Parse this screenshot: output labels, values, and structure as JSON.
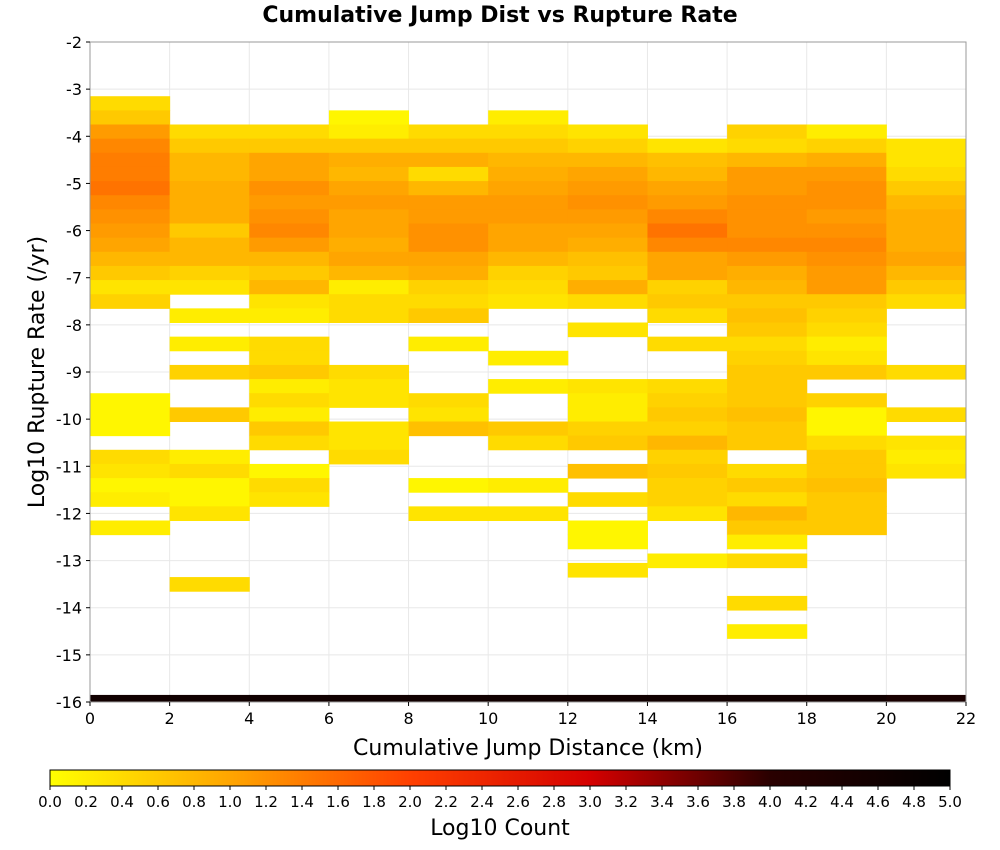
{
  "chart_data": {
    "type": "heatmap",
    "title": "Cumulative Jump Dist vs Rupture Rate",
    "xlabel": "Cumulative Jump Distance (km)",
    "ylabel": "Log10 Rupture Rate (/yr)",
    "colorbar_label": "Log10 Count",
    "xlim": [
      0,
      22
    ],
    "ylim": [
      -16,
      -2
    ],
    "x_ticks": [
      "0",
      "2",
      "4",
      "6",
      "8",
      "10",
      "12",
      "14",
      "16",
      "18",
      "20",
      "22"
    ],
    "y_ticks": [
      "-2",
      "-3",
      "-4",
      "-5",
      "-6",
      "-7",
      "-8",
      "-9",
      "-10",
      "-11",
      "-12",
      "-13",
      "-14",
      "-15",
      "-16"
    ],
    "colorbar_ticks": [
      "0.0",
      "0.2",
      "0.4",
      "0.6",
      "0.8",
      "1.0",
      "1.2",
      "1.4",
      "1.6",
      "1.8",
      "2.0",
      "2.2",
      "2.4",
      "2.6",
      "2.8",
      "3.0",
      "3.2",
      "3.4",
      "3.6",
      "3.8",
      "4.0",
      "4.2",
      "4.4",
      "4.6",
      "4.8",
      "5.0"
    ],
    "color_range": [
      0,
      5
    ],
    "colormap": [
      "#ffff00",
      "#ffa500",
      "#ff4000",
      "#d40000",
      "#2a0000",
      "#000000"
    ],
    "grid": true,
    "legend": "bottom",
    "x_bin_width": 2,
    "y_bin_height": 0.3,
    "columns": [
      {
        "x0": 0,
        "cells": [
          [
            -3.3,
            0.4
          ],
          [
            -3.6,
            0.6
          ],
          [
            -3.9,
            1.1
          ],
          [
            -4.2,
            1.3
          ],
          [
            -4.5,
            1.4
          ],
          [
            -4.8,
            1.4
          ],
          [
            -5.1,
            1.5
          ],
          [
            -5.4,
            1.3
          ],
          [
            -5.7,
            1.2
          ],
          [
            -6.0,
            1.1
          ],
          [
            -6.3,
            1.0
          ],
          [
            -6.6,
            0.8
          ],
          [
            -6.9,
            0.6
          ],
          [
            -7.2,
            0.3
          ],
          [
            -7.5,
            0.5
          ],
          [
            -9.6,
            0.1
          ],
          [
            -9.9,
            0.1
          ],
          [
            -10.2,
            0.1
          ],
          [
            -10.8,
            0.4
          ],
          [
            -11.1,
            0.3
          ],
          [
            -11.4,
            0.1
          ],
          [
            -11.7,
            0.2
          ],
          [
            -12.3,
            0.2
          ]
        ]
      },
      {
        "x0": 2,
        "cells": [
          [
            -3.9,
            0.4
          ],
          [
            -4.2,
            0.6
          ],
          [
            -4.5,
            0.8
          ],
          [
            -4.8,
            0.8
          ],
          [
            -5.1,
            0.9
          ],
          [
            -5.4,
            0.9
          ],
          [
            -5.7,
            0.9
          ],
          [
            -6.0,
            0.6
          ],
          [
            -6.3,
            0.8
          ],
          [
            -6.6,
            0.8
          ],
          [
            -6.9,
            0.5
          ],
          [
            -7.2,
            0.3
          ],
          [
            -7.8,
            0.2
          ],
          [
            -8.4,
            0.2
          ],
          [
            -9.0,
            0.5
          ],
          [
            -9.9,
            0.6
          ],
          [
            -10.8,
            0.2
          ],
          [
            -11.1,
            0.4
          ],
          [
            -11.4,
            0.1
          ],
          [
            -11.7,
            0.1
          ],
          [
            -12.0,
            0.3
          ],
          [
            -13.5,
            0.4
          ]
        ]
      },
      {
        "x0": 4,
        "cells": [
          [
            -3.9,
            0.4
          ],
          [
            -4.2,
            0.6
          ],
          [
            -4.5,
            1.0
          ],
          [
            -4.8,
            1.0
          ],
          [
            -5.1,
            1.2
          ],
          [
            -5.4,
            1.1
          ],
          [
            -5.7,
            1.2
          ],
          [
            -6.0,
            1.3
          ],
          [
            -6.3,
            1.1
          ],
          [
            -6.6,
            0.8
          ],
          [
            -6.9,
            0.6
          ],
          [
            -7.2,
            0.8
          ],
          [
            -7.5,
            0.3
          ],
          [
            -7.8,
            0.2
          ],
          [
            -8.4,
            0.4
          ],
          [
            -8.7,
            0.4
          ],
          [
            -9.0,
            0.6
          ],
          [
            -9.3,
            0.2
          ],
          [
            -9.6,
            0.4
          ],
          [
            -9.9,
            0.2
          ],
          [
            -10.2,
            0.6
          ],
          [
            -10.5,
            0.4
          ],
          [
            -11.1,
            0.1
          ],
          [
            -11.4,
            0.4
          ],
          [
            -11.7,
            0.3
          ]
        ]
      },
      {
        "x0": 6,
        "cells": [
          [
            -3.6,
            0.1
          ],
          [
            -3.9,
            0.2
          ],
          [
            -4.2,
            0.6
          ],
          [
            -4.5,
            0.9
          ],
          [
            -4.8,
            0.8
          ],
          [
            -5.1,
            1.0
          ],
          [
            -5.4,
            1.1
          ],
          [
            -5.7,
            1.0
          ],
          [
            -6.0,
            1.0
          ],
          [
            -6.3,
            0.9
          ],
          [
            -6.6,
            1.0
          ],
          [
            -6.9,
            0.8
          ],
          [
            -7.2,
            0.2
          ],
          [
            -7.5,
            0.4
          ],
          [
            -7.8,
            0.4
          ],
          [
            -9.0,
            0.4
          ],
          [
            -9.3,
            0.3
          ],
          [
            -9.6,
            0.3
          ],
          [
            -10.2,
            0.3
          ],
          [
            -10.5,
            0.3
          ],
          [
            -10.8,
            0.4
          ]
        ]
      },
      {
        "x0": 8,
        "cells": [
          [
            -3.9,
            0.4
          ],
          [
            -4.2,
            0.6
          ],
          [
            -4.5,
            0.9
          ],
          [
            -4.8,
            0.4
          ],
          [
            -5.1,
            0.8
          ],
          [
            -5.4,
            1.1
          ],
          [
            -5.7,
            1.1
          ],
          [
            -6.0,
            1.2
          ],
          [
            -6.3,
            1.2
          ],
          [
            -6.6,
            1.0
          ],
          [
            -6.9,
            0.9
          ],
          [
            -7.2,
            0.5
          ],
          [
            -7.5,
            0.4
          ],
          [
            -7.8,
            0.6
          ],
          [
            -8.4,
            0.2
          ],
          [
            -9.6,
            0.4
          ],
          [
            -9.9,
            0.3
          ],
          [
            -10.2,
            0.7
          ],
          [
            -11.4,
            0.1
          ],
          [
            -12.0,
            0.3
          ]
        ]
      },
      {
        "x0": 10,
        "cells": [
          [
            -3.6,
            0.2
          ],
          [
            -3.9,
            0.4
          ],
          [
            -4.2,
            0.6
          ],
          [
            -4.5,
            0.8
          ],
          [
            -4.8,
            0.9
          ],
          [
            -5.1,
            1.0
          ],
          [
            -5.4,
            1.1
          ],
          [
            -5.7,
            1.1
          ],
          [
            -6.0,
            1.0
          ],
          [
            -6.3,
            1.0
          ],
          [
            -6.6,
            0.8
          ],
          [
            -6.9,
            0.5
          ],
          [
            -7.2,
            0.4
          ],
          [
            -7.5,
            0.3
          ],
          [
            -8.7,
            0.2
          ],
          [
            -9.3,
            0.2
          ],
          [
            -10.2,
            0.6
          ],
          [
            -10.5,
            0.4
          ],
          [
            -11.4,
            0.2
          ],
          [
            -12.0,
            0.3
          ]
        ]
      },
      {
        "x0": 12,
        "cells": [
          [
            -3.9,
            0.3
          ],
          [
            -4.2,
            0.5
          ],
          [
            -4.5,
            0.8
          ],
          [
            -4.8,
            1.0
          ],
          [
            -5.1,
            1.1
          ],
          [
            -5.4,
            1.2
          ],
          [
            -5.7,
            1.1
          ],
          [
            -6.0,
            1.0
          ],
          [
            -6.3,
            0.9
          ],
          [
            -6.6,
            0.7
          ],
          [
            -6.9,
            0.6
          ],
          [
            -7.2,
            0.9
          ],
          [
            -7.5,
            0.4
          ],
          [
            -8.1,
            0.3
          ],
          [
            -9.3,
            0.3
          ],
          [
            -9.6,
            0.2
          ],
          [
            -9.9,
            0.2
          ],
          [
            -10.2,
            0.5
          ],
          [
            -10.5,
            0.6
          ],
          [
            -11.1,
            0.7
          ],
          [
            -11.7,
            0.4
          ],
          [
            -12.3,
            0.1
          ],
          [
            -12.6,
            0.1
          ],
          [
            -13.2,
            0.3
          ]
        ]
      },
      {
        "x0": 14,
        "cells": [
          [
            -4.2,
            0.3
          ],
          [
            -4.5,
            0.7
          ],
          [
            -4.8,
            0.8
          ],
          [
            -5.1,
            1.0
          ],
          [
            -5.4,
            1.1
          ],
          [
            -5.7,
            1.3
          ],
          [
            -6.0,
            1.5
          ],
          [
            -6.3,
            1.3
          ],
          [
            -6.6,
            1.0
          ],
          [
            -6.9,
            1.0
          ],
          [
            -7.2,
            0.5
          ],
          [
            -7.5,
            0.6
          ],
          [
            -7.8,
            0.4
          ],
          [
            -8.4,
            0.4
          ],
          [
            -9.3,
            0.4
          ],
          [
            -9.6,
            0.5
          ],
          [
            -9.9,
            0.6
          ],
          [
            -10.2,
            0.5
          ],
          [
            -10.5,
            0.8
          ],
          [
            -10.8,
            0.5
          ],
          [
            -11.1,
            0.6
          ],
          [
            -11.4,
            0.5
          ],
          [
            -11.7,
            0.5
          ],
          [
            -12.0,
            0.3
          ],
          [
            -13.0,
            0.2
          ]
        ]
      },
      {
        "x0": 16,
        "cells": [
          [
            -3.9,
            0.5
          ],
          [
            -4.2,
            0.4
          ],
          [
            -4.5,
            0.8
          ],
          [
            -4.8,
            1.1
          ],
          [
            -5.1,
            1.1
          ],
          [
            -5.4,
            1.2
          ],
          [
            -5.7,
            1.2
          ],
          [
            -6.0,
            1.2
          ],
          [
            -6.3,
            1.3
          ],
          [
            -6.6,
            1.1
          ],
          [
            -6.9,
            0.9
          ],
          [
            -7.2,
            0.8
          ],
          [
            -7.5,
            0.6
          ],
          [
            -7.8,
            0.7
          ],
          [
            -8.1,
            0.6
          ],
          [
            -8.4,
            0.4
          ],
          [
            -8.7,
            0.5
          ],
          [
            -9.0,
            0.6
          ],
          [
            -9.3,
            0.6
          ],
          [
            -9.6,
            0.6
          ],
          [
            -9.9,
            0.7
          ],
          [
            -10.2,
            0.6
          ],
          [
            -10.5,
            0.6
          ],
          [
            -11.1,
            0.4
          ],
          [
            -11.4,
            0.6
          ],
          [
            -11.7,
            0.4
          ],
          [
            -12.0,
            0.8
          ],
          [
            -12.3,
            0.6
          ],
          [
            -12.6,
            0.2
          ],
          [
            -13.0,
            0.4
          ],
          [
            -13.9,
            0.4
          ],
          [
            -14.5,
            0.2
          ]
        ]
      },
      {
        "x0": 18,
        "cells": [
          [
            -3.9,
            0.2
          ],
          [
            -4.2,
            0.5
          ],
          [
            -4.5,
            0.9
          ],
          [
            -4.8,
            1.1
          ],
          [
            -5.1,
            1.2
          ],
          [
            -5.4,
            1.2
          ],
          [
            -5.7,
            1.1
          ],
          [
            -6.0,
            1.2
          ],
          [
            -6.3,
            1.3
          ],
          [
            -6.6,
            1.2
          ],
          [
            -6.9,
            1.1
          ],
          [
            -7.2,
            1.1
          ],
          [
            -7.5,
            0.6
          ],
          [
            -7.8,
            0.5
          ],
          [
            -8.1,
            0.4
          ],
          [
            -8.4,
            0.2
          ],
          [
            -8.7,
            0.3
          ],
          [
            -9.0,
            0.6
          ],
          [
            -9.6,
            0.5
          ],
          [
            -9.9,
            0.1
          ],
          [
            -10.2,
            0.1
          ],
          [
            -10.5,
            0.4
          ],
          [
            -10.8,
            0.6
          ],
          [
            -11.1,
            0.6
          ],
          [
            -11.4,
            0.7
          ],
          [
            -11.7,
            0.6
          ],
          [
            -12.0,
            0.6
          ],
          [
            -12.3,
            0.6
          ]
        ]
      },
      {
        "x0": 20,
        "cells": [
          [
            -4.2,
            0.3
          ],
          [
            -4.5,
            0.3
          ],
          [
            -4.8,
            0.4
          ],
          [
            -5.1,
            0.6
          ],
          [
            -5.4,
            0.8
          ],
          [
            -5.7,
            0.9
          ],
          [
            -6.0,
            0.9
          ],
          [
            -6.3,
            0.9
          ],
          [
            -6.6,
            1.0
          ],
          [
            -6.9,
            0.8
          ],
          [
            -7.2,
            0.6
          ],
          [
            -7.5,
            0.4
          ],
          [
            -9.0,
            0.4
          ],
          [
            -9.9,
            0.4
          ],
          [
            -10.5,
            0.3
          ],
          [
            -10.8,
            0.2
          ],
          [
            -11.1,
            0.3
          ]
        ]
      }
    ],
    "floor_row": {
      "y": -16,
      "values": [
        4.6,
        4.6,
        4.6,
        4.6,
        4.6,
        4.6,
        4.6,
        4.6,
        4.6,
        4.6,
        4.4
      ]
    }
  }
}
